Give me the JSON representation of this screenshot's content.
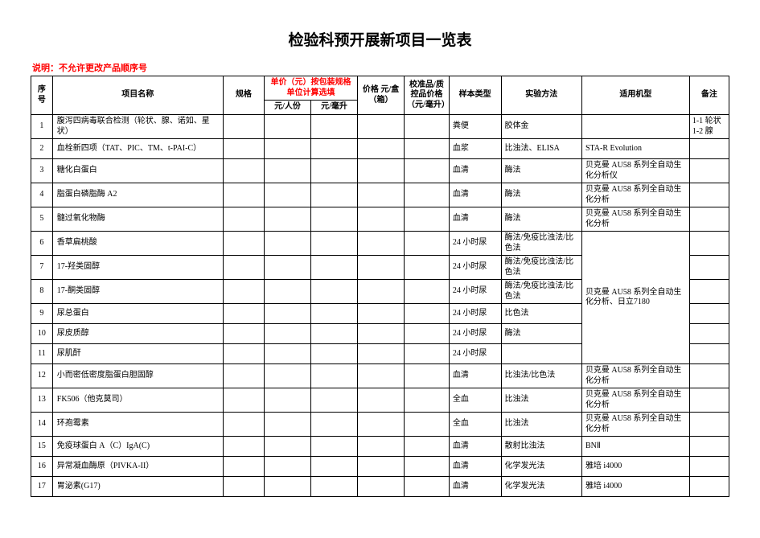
{
  "document": {
    "title": "检验科预开展新项目一览表",
    "note": "说明：不允许更改产品顺序号"
  },
  "table": {
    "header": {
      "seq": "序号",
      "name": "项目名称",
      "spec": "规格",
      "unit_price_group": "单价（元）按包装规格单位计算选填",
      "price_per_person": "元/人份",
      "price_per_ml": "元/毫升",
      "price_per_box": "价格 元/盒（箱）",
      "qc_price": "校准品/质控品价格（元/毫升）",
      "sample_type": "样本类型",
      "method": "实验方法",
      "model": "适用机型",
      "remark": "备注"
    },
    "rows": [
      {
        "seq": "1",
        "name": "腹泻四病毒联合检测（轮状、腺、诺如、星状）",
        "spec": "",
        "p1": "",
        "p2": "",
        "box": "",
        "qc": "",
        "sample": "粪便",
        "method": "胶体金",
        "model": "",
        "remark": "1-1 轮状 1-2 腺"
      },
      {
        "seq": "2",
        "name": "血栓新四项（TAT、PIC、TM、t-PAI-C）",
        "spec": "",
        "p1": "",
        "p2": "",
        "box": "",
        "qc": "",
        "sample": "血浆",
        "method": "比浊法、ELISA",
        "model": "STA-R Evolution",
        "remark": ""
      },
      {
        "seq": "3",
        "name": "糖化白蛋白",
        "spec": "",
        "p1": "",
        "p2": "",
        "box": "",
        "qc": "",
        "sample": "血清",
        "method": "酶法",
        "model": "贝克曼 AU58 系列全自动生化分析仪",
        "remark": ""
      },
      {
        "seq": "4",
        "name": "脂蛋白磷脂酶 A2",
        "spec": "",
        "p1": "",
        "p2": "",
        "box": "",
        "qc": "",
        "sample": "血清",
        "method": "酶法",
        "model": "贝克曼 AU58 系列全自动生化分析",
        "remark": ""
      },
      {
        "seq": "5",
        "name": "髓过氧化物酶",
        "spec": "",
        "p1": "",
        "p2": "",
        "box": "",
        "qc": "",
        "sample": "血清",
        "method": "酶法",
        "model": "贝克曼 AU58 系列全自动生化分析",
        "remark": ""
      },
      {
        "seq": "6",
        "name": "香草扁桃酸",
        "spec": "",
        "p1": "",
        "p2": "",
        "box": "",
        "qc": "",
        "sample": "24 小时尿",
        "method": "酶法/免疫比浊法/比色法",
        "model_span_start": true,
        "model": "贝克曼 AU58 系列全自动生化分析、日立7180",
        "remark": ""
      },
      {
        "seq": "7",
        "name": "17-羟类固醇",
        "spec": "",
        "p1": "",
        "p2": "",
        "box": "",
        "qc": "",
        "sample": "24 小时尿",
        "method": "酶法/免疫比浊法/比色法",
        "remark": ""
      },
      {
        "seq": "8",
        "name": "17-酮类固醇",
        "spec": "",
        "p1": "",
        "p2": "",
        "box": "",
        "qc": "",
        "sample": "24 小时尿",
        "method": "酶法/免疫比浊法/比色法",
        "remark": ""
      },
      {
        "seq": "9",
        "name": "尿总蛋白",
        "spec": "",
        "p1": "",
        "p2": "",
        "box": "",
        "qc": "",
        "sample": "24 小时尿",
        "method": "比色法",
        "remark": ""
      },
      {
        "seq": "10",
        "name": "尿皮质醇",
        "spec": "",
        "p1": "",
        "p2": "",
        "box": "",
        "qc": "",
        "sample": "24 小时尿",
        "method": "酶法",
        "remark": ""
      },
      {
        "seq": "11",
        "name": "尿肌酐",
        "spec": "",
        "p1": "",
        "p2": "",
        "box": "",
        "qc": "",
        "sample": "24 小时尿",
        "method": "",
        "remark": ""
      },
      {
        "seq": "12",
        "name": "小而密低密度脂蛋白胆固醇",
        "spec": "",
        "p1": "",
        "p2": "",
        "box": "",
        "qc": "",
        "sample": "血清",
        "method": "比浊法/比色法",
        "model": "贝克曼 AU58 系列全自动生化分析",
        "remark": ""
      },
      {
        "seq": "13",
        "name": "FK506（他克莫司）",
        "spec": "",
        "p1": "",
        "p2": "",
        "box": "",
        "qc": "",
        "sample": "全血",
        "method": "比浊法",
        "model": "贝克曼 AU58 系列全自动生化分析",
        "remark": ""
      },
      {
        "seq": "14",
        "name": "环孢霉素",
        "spec": "",
        "p1": "",
        "p2": "",
        "box": "",
        "qc": "",
        "sample": "全血",
        "method": "比浊法",
        "model": "贝克曼 AU58 系列全自动生化分析",
        "remark": ""
      },
      {
        "seq": "15",
        "name": "免疫球蛋白 A（C）IgA(C)",
        "spec": "",
        "p1": "",
        "p2": "",
        "box": "",
        "qc": "",
        "sample": "血清",
        "method": "散射比浊法",
        "model": "BNⅡ",
        "remark": ""
      },
      {
        "seq": "16",
        "name": "异常凝血酶原（PIVKA-II）",
        "spec": "",
        "p1": "",
        "p2": "",
        "box": "",
        "qc": "",
        "sample": "血清",
        "method": "化学发光法",
        "model": "雅培 i4000",
        "remark": ""
      },
      {
        "seq": "17",
        "name": "胃泌素(G17)",
        "spec": "",
        "p1": "",
        "p2": "",
        "box": "",
        "qc": "",
        "sample": "血清",
        "method": "化学发光法",
        "model": "雅培 i4000",
        "remark": ""
      }
    ]
  }
}
